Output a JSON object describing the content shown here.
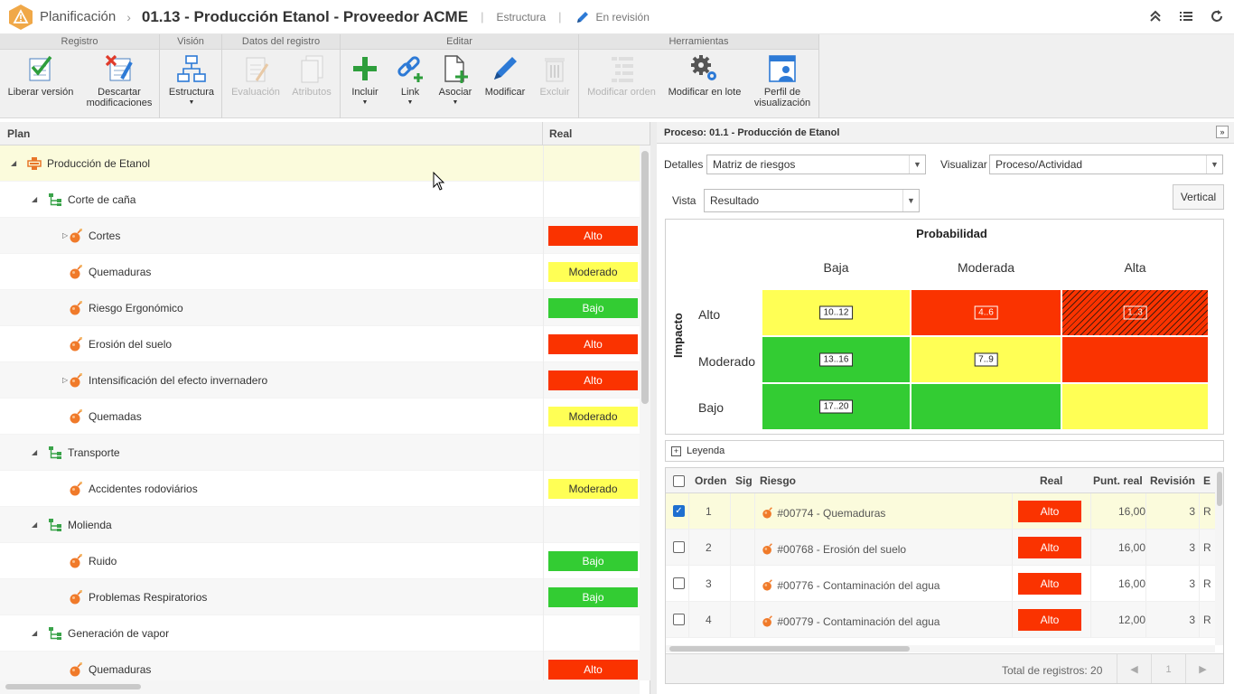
{
  "header": {
    "app_name": "Planificación",
    "doc_title": "01.13 - Producción Etanol - Proveedor ACME",
    "structure_link": "Estructura",
    "status": "En revisión"
  },
  "ribbon": {
    "groups": {
      "registro": "Registro",
      "vision": "Visión",
      "datos": "Datos del registro",
      "editar": "Editar",
      "herramientas": "Herramientas"
    },
    "buttons": {
      "liberar": "Liberar versión",
      "descartar_1": "Descartar",
      "descartar_2": "modificaciones",
      "estructura": "Estructura",
      "evaluacion": "Evaluación",
      "atributos": "Atributos",
      "incluir": "Incluir",
      "link": "Link",
      "asociar": "Asociar",
      "modificar": "Modificar",
      "excluir": "Excluir",
      "modificar_orden": "Modificar orden",
      "modificar_lote": "Modificar en lote",
      "perfil_1": "Perfil de",
      "perfil_2": "visualización"
    }
  },
  "tree": {
    "col_plan": "Plan",
    "col_real": "Real",
    "rows": [
      {
        "label": "Producción de Etanol",
        "level": 0,
        "type": "process",
        "expander": "open",
        "real": ""
      },
      {
        "label": "Corte de caña",
        "level": 1,
        "type": "activity",
        "expander": "open",
        "real": ""
      },
      {
        "label": "Cortes",
        "level": 2,
        "type": "risk",
        "expander": "closed",
        "real": "Alto"
      },
      {
        "label": "Quemaduras",
        "level": 2,
        "type": "risk",
        "expander": "",
        "real": "Moderado"
      },
      {
        "label": "Riesgo Ergonómico",
        "level": 2,
        "type": "risk",
        "expander": "",
        "real": "Bajo"
      },
      {
        "label": "Erosión del suelo",
        "level": 2,
        "type": "risk",
        "expander": "",
        "real": "Alto"
      },
      {
        "label": "Intensificación del efecto invernadero",
        "level": 2,
        "type": "risk",
        "expander": "closed",
        "real": "Alto"
      },
      {
        "label": "Quemadas",
        "level": 2,
        "type": "risk",
        "expander": "",
        "real": "Moderado"
      },
      {
        "label": "Transporte",
        "level": 1,
        "type": "activity",
        "expander": "open",
        "real": ""
      },
      {
        "label": "Accidentes rodoviários",
        "level": 2,
        "type": "risk",
        "expander": "",
        "real": "Moderado"
      },
      {
        "label": "Molienda",
        "level": 1,
        "type": "activity",
        "expander": "open",
        "real": ""
      },
      {
        "label": "Ruido",
        "level": 2,
        "type": "risk",
        "expander": "",
        "real": "Bajo"
      },
      {
        "label": "Problemas Respiratorios",
        "level": 2,
        "type": "risk",
        "expander": "",
        "real": "Bajo"
      },
      {
        "label": "Generación de vapor",
        "level": 1,
        "type": "activity",
        "expander": "open",
        "real": ""
      },
      {
        "label": "Quemaduras",
        "level": 2,
        "type": "risk",
        "expander": "",
        "real": "Alto"
      }
    ]
  },
  "panel": {
    "title": "Proceso: 01.1 - Producción de Etanol",
    "detalles_label": "Detalles",
    "detalles_value": "Matriz de riesgos",
    "visualizar_label": "Visualizar",
    "visualizar_value": "Proceso/Actividad",
    "vista_label": "Vista",
    "vista_value": "Resultado",
    "vertical_button": "Vertical",
    "legend": "Leyenda"
  },
  "matrix": {
    "title": "Probabilidad",
    "impact_label": "Impacto",
    "cols": [
      "Baja",
      "Moderada",
      "Alta"
    ],
    "rows": [
      "Alto",
      "Moderado",
      "Bajo"
    ],
    "cells": [
      [
        "10..12",
        "4..6",
        "1..3"
      ],
      [
        "13..16",
        "7..9",
        ""
      ],
      [
        "17..20",
        "",
        ""
      ]
    ],
    "colors": {
      "high": "#fa3300",
      "medium": "#ffff55",
      "low": "#33cc33"
    }
  },
  "grid": {
    "headers": {
      "orden": "Orden",
      "sig": "Sig",
      "riesgo": "Riesgo",
      "real": "Real",
      "punt": "Punt. real",
      "revision": "Revisión",
      "e": "E"
    },
    "rows": [
      {
        "orden": "1",
        "riesgo": "#00774 - Quemaduras",
        "real": "Alto",
        "punt": "16,00",
        "revision": "3",
        "e": "R",
        "checked": true
      },
      {
        "orden": "2",
        "riesgo": "#00768 - Erosión del suelo",
        "real": "Alto",
        "punt": "16,00",
        "revision": "3",
        "e": "R",
        "checked": false
      },
      {
        "orden": "3",
        "riesgo": "#00776 - Contaminación del agua",
        "real": "Alto",
        "punt": "16,00",
        "revision": "3",
        "e": "R",
        "checked": false
      },
      {
        "orden": "4",
        "riesgo": "#00779 - Contaminación del agua",
        "real": "Alto",
        "punt": "12,00",
        "revision": "3",
        "e": "R",
        "checked": false
      }
    ],
    "total": "Total de registros: 20",
    "page": "1"
  }
}
